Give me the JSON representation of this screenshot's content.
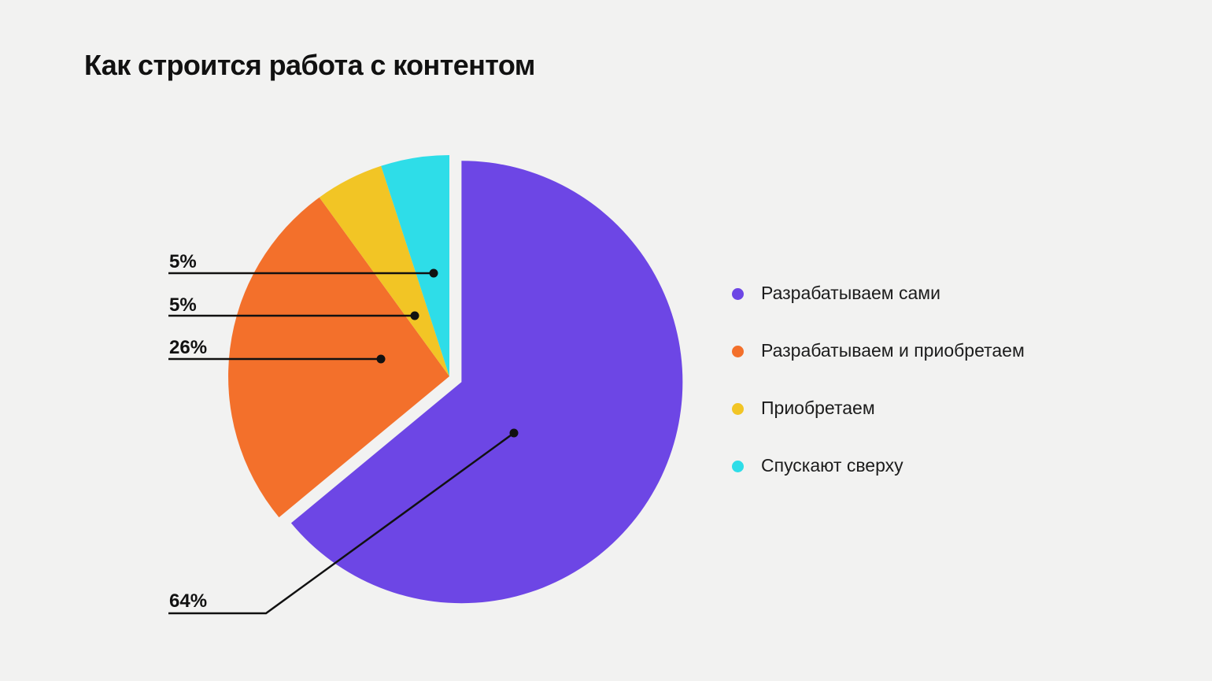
{
  "title": "Как строится работа с контентом",
  "colors": {
    "background": "#F2F2F1",
    "text": "#111111",
    "leader_line": "#111111"
  },
  "chart_data": {
    "type": "pie",
    "title": "Как строится работа с контентом",
    "unit": "%",
    "direction": "clockwise",
    "start_angle_deg": 0,
    "legend_position": "right",
    "exploded_slice": "Разрабатываем сами",
    "slices": [
      {
        "label": "Разрабатываем сами",
        "value": 64,
        "value_label": "64%",
        "color": "#6D46E5",
        "exploded": true
      },
      {
        "label": "Разрабатываем и приобретаем",
        "value": 26,
        "value_label": "26%",
        "color": "#F3702B",
        "exploded": false
      },
      {
        "label": "Приобретаем",
        "value": 5,
        "value_label": "5%",
        "color": "#F2C525",
        "exploded": false
      },
      {
        "label": "Спускают сверху",
        "value": 5,
        "value_label": "5%",
        "color": "#2EDDE8",
        "exploded": false
      }
    ]
  }
}
